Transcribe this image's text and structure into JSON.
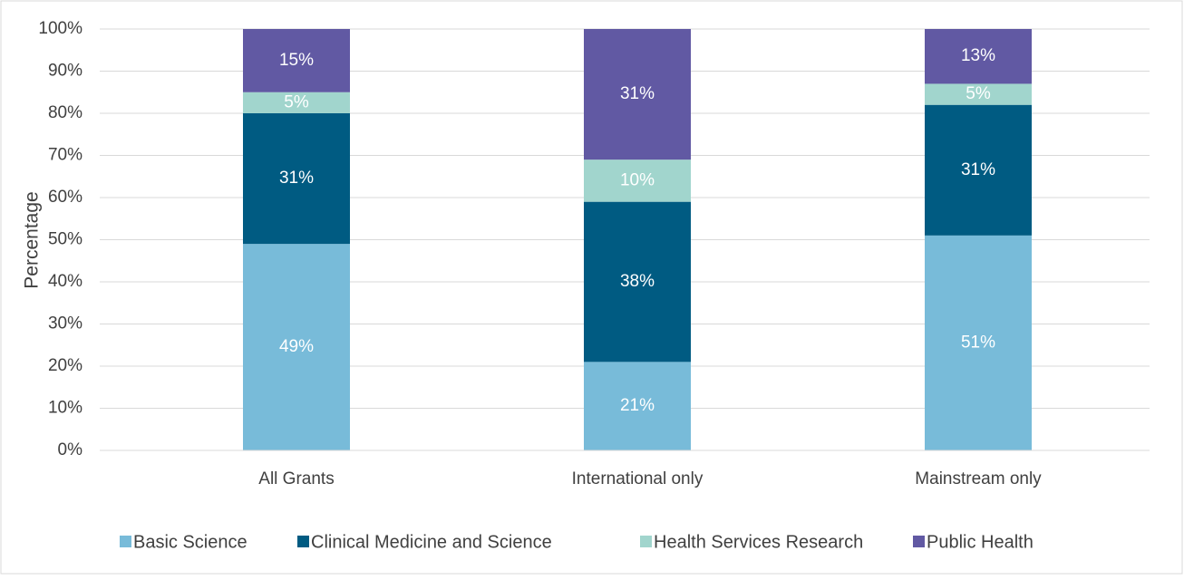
{
  "chart_data": {
    "type": "stacked_bar",
    "y_axis_label": "Percentage",
    "categories": [
      "All Grants",
      "International only",
      "Mainstream only"
    ],
    "series": [
      {
        "name": "Basic Science",
        "color": "#78bbd9",
        "values": [
          49,
          21,
          51
        ],
        "value_labels": [
          "49%",
          "21%",
          "51%"
        ]
      },
      {
        "name": "Clinical Medicine and Science",
        "color": "#005b82",
        "values": [
          31,
          38,
          31
        ],
        "value_labels": [
          "31%",
          "38%",
          "31%"
        ]
      },
      {
        "name": "Health Services Research",
        "color": "#a1d5cd",
        "values": [
          5,
          10,
          5
        ],
        "value_labels": [
          "5%",
          "10%",
          "5%"
        ]
      },
      {
        "name": "Public Health",
        "color": "#6159a3",
        "values": [
          15,
          31,
          13
        ],
        "value_labels": [
          "15%",
          "31%",
          "13%"
        ]
      }
    ],
    "ylim": [
      0,
      100
    ],
    "yticks": [
      {
        "value": 0,
        "label": "0%"
      },
      {
        "value": 10,
        "label": "10%"
      },
      {
        "value": 20,
        "label": "20%"
      },
      {
        "value": 30,
        "label": "30%"
      },
      {
        "value": 40,
        "label": "40%"
      },
      {
        "value": 50,
        "label": "50%"
      },
      {
        "value": 60,
        "label": "60%"
      },
      {
        "value": 70,
        "label": "70%"
      },
      {
        "value": 80,
        "label": "80%"
      },
      {
        "value": 90,
        "label": "90%"
      },
      {
        "value": 100,
        "label": "100%"
      }
    ],
    "grid": true,
    "legend": "bottom"
  }
}
